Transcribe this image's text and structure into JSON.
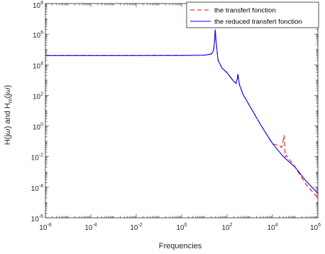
{
  "chart_data": {
    "type": "line",
    "xscale": "log",
    "yscale": "log",
    "xlim": [
      1e-06,
      1000000.0
    ],
    "ylim": [
      1e-06,
      100000000.0
    ],
    "xticks": [
      {
        "base": "10",
        "exp": "-6"
      },
      {
        "base": "10",
        "exp": "-4"
      },
      {
        "base": "10",
        "exp": "-2"
      },
      {
        "base": "10",
        "exp": "0"
      },
      {
        "base": "10",
        "exp": "2"
      },
      {
        "base": "10",
        "exp": "4"
      },
      {
        "base": "10",
        "exp": "6"
      }
    ],
    "yticks": [
      {
        "base": "10",
        "exp": "-6"
      },
      {
        "base": "10",
        "exp": "-4"
      },
      {
        "base": "10",
        "exp": "-2"
      },
      {
        "base": "10",
        "exp": "0"
      },
      {
        "base": "10",
        "exp": "2"
      },
      {
        "base": "10",
        "exp": "4"
      },
      {
        "base": "10",
        "exp": "6"
      },
      {
        "base": "10",
        "exp": "8"
      }
    ],
    "xlabel": "Frequencies",
    "ylabel": {
      "part1": "H(j",
      "part2": "ω",
      "part3": ") and H",
      "sub": "m",
      "part4": "(j",
      "part5": "ω",
      "part6": ")"
    },
    "legend_position": "top-right",
    "grid": false,
    "series": [
      {
        "name": "the transfert fonction",
        "color": "#ff0000",
        "style": "dashed",
        "x": [
          1e-06,
          0.001,
          1,
          10,
          20,
          25,
          28,
          30,
          33,
          40,
          60,
          100,
          200,
          250,
          280,
          300,
          350,
          500,
          1000,
          3000,
          10000,
          20000,
          25000,
          30000,
          32000,
          35000,
          37000,
          40000,
          50000,
          100000,
          300000,
          1000000
        ],
        "y": [
          40000,
          40000,
          40500,
          42000,
          50000,
          80000,
          300000,
          2000000,
          300000,
          20000,
          6000,
          3000,
          800,
          600,
          1200,
          2500,
          500,
          120,
          20,
          1.2,
          0.07,
          0.05,
          0.04,
          0.12,
          0.25,
          0.03,
          0.01,
          0.012,
          0.008,
          0.002,
          0.00015,
          2e-05
        ]
      },
      {
        "name": "the reduced transfert fonction",
        "color": "#0000ff",
        "style": "solid",
        "x": [
          1e-06,
          0.001,
          1,
          10,
          20,
          25,
          28,
          30,
          33,
          40,
          60,
          100,
          200,
          250,
          280,
          300,
          350,
          500,
          1000,
          3000,
          10000,
          30000,
          100000,
          300000,
          1000000
        ],
        "y": [
          40000,
          40000,
          40500,
          42000,
          50000,
          80000,
          300000,
          2000000,
          300000,
          20000,
          6000,
          3000,
          800,
          600,
          1200,
          2500,
          500,
          120,
          20,
          1.2,
          0.07,
          0.01,
          0.002,
          0.00025,
          4e-05
        ]
      }
    ]
  }
}
